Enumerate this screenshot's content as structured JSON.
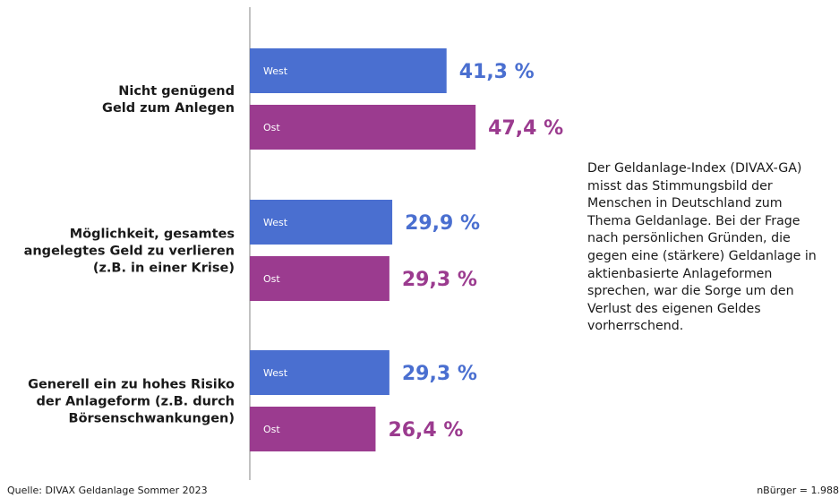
{
  "chart_data": {
    "type": "bar",
    "orientation": "horizontal",
    "categories": [
      [
        "Nicht genügend",
        "Geld zum Anlegen"
      ],
      [
        "Möglichkeit, gesamtes",
        "angelegtes Geld zu verlieren",
        "(z.B. in einer Krise)"
      ],
      [
        "Generell ein zu hohes Risiko",
        "der Anlageform (z.B. durch",
        "Börsenschwankungen)"
      ]
    ],
    "series": [
      {
        "name": "West",
        "values": [
          41.3,
          29.9,
          29.3
        ],
        "labels": [
          "41,3 %",
          "29,9 %",
          "29,3 %"
        ],
        "color": "#4a6fd0",
        "label_color": "#4a6fd0"
      },
      {
        "name": "Ost",
        "values": [
          47.4,
          29.3,
          26.4
        ],
        "labels": [
          "47,4 %",
          "29,3 %",
          "26,4 %"
        ],
        "color": "#9b3b8f",
        "label_color": "#9b3b8f"
      }
    ],
    "xlim": [
      0,
      100
    ],
    "grid": false,
    "legend": "none"
  },
  "description": "Der Geldanlage-Index (DIVAX-GA) misst das Stimmungsbild der Menschen in Deutschland zum Thema Geldanlage. Bei der Frage nach persönlichen Gründen, die gegen eine (stärkere) Geldanlage in aktienbasierte Anlageformen sprechen, war die Sorge um den Verlust des eigenen Geldes vorherrschend.",
  "footer": {
    "source": "Quelle: DIVAX Geldanlage Sommer 2023",
    "sample": "nBürger = 1.988"
  },
  "colors": {
    "axis": "#999999",
    "text": "#1a1a1a"
  }
}
